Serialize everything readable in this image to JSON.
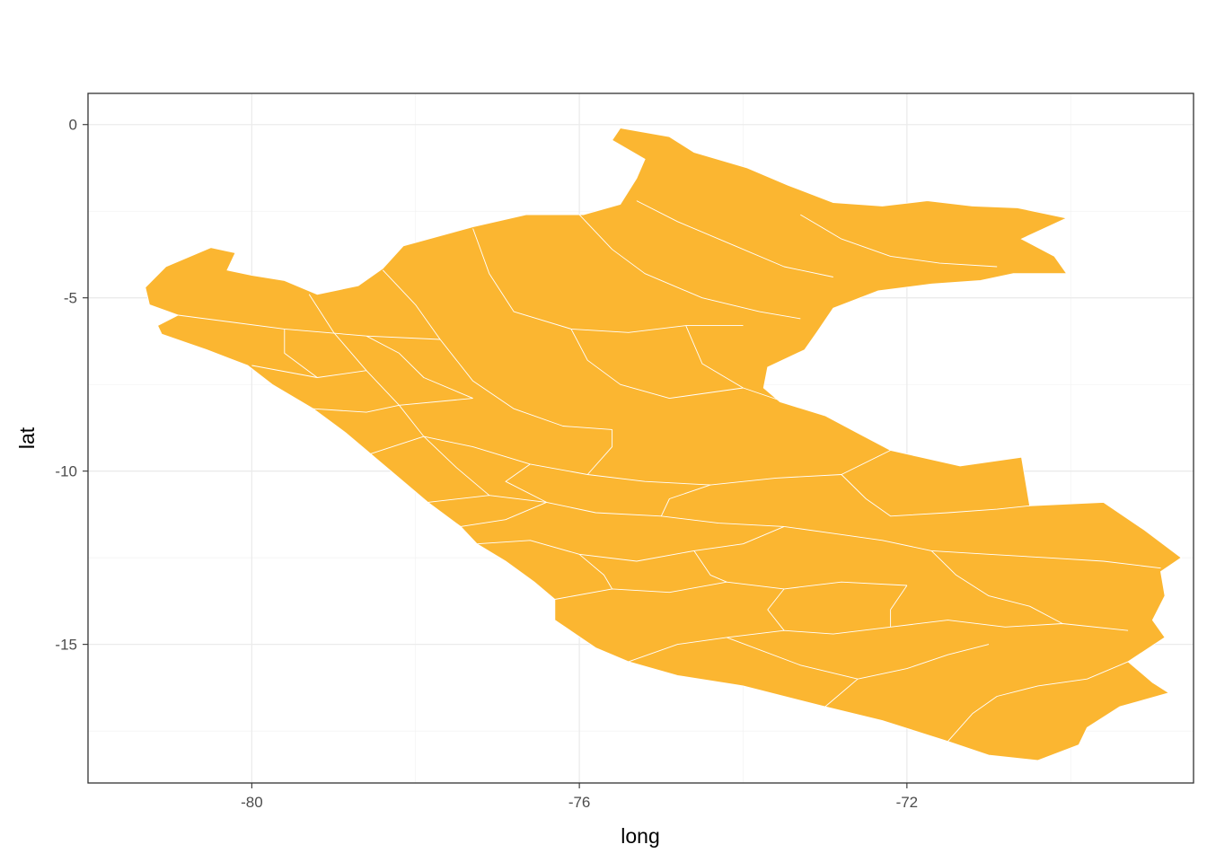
{
  "chart_data": {
    "type": "map",
    "xlabel": "long",
    "ylabel": "lat",
    "xlim": [
      -82.0,
      -68.5
    ],
    "ylim": [
      -19.0,
      0.9
    ],
    "x_ticks": [
      {
        "value": -80,
        "label": "-80"
      },
      {
        "value": -76,
        "label": "-76"
      },
      {
        "value": -72,
        "label": "-72"
      }
    ],
    "x_minor_ticks": [
      -78,
      -74,
      -70
    ],
    "y_ticks": [
      {
        "value": 0,
        "label": "0"
      },
      {
        "value": -5,
        "label": "-5"
      },
      {
        "value": -10,
        "label": "-10"
      },
      {
        "value": -15,
        "label": "-15"
      }
    ],
    "y_minor_ticks": [
      -2.5,
      -7.5,
      -12.5,
      -17.5
    ],
    "grid": true,
    "fill_color": "#fbb631",
    "border_color": "#ffffff",
    "panel_border_color": "#333333",
    "outline": [
      [
        -75.5,
        -0.1
      ],
      [
        -74.9,
        -0.35
      ],
      [
        -74.6,
        -0.8
      ],
      [
        -73.95,
        -1.25
      ],
      [
        -73.45,
        -1.75
      ],
      [
        -72.9,
        -2.25
      ],
      [
        -72.3,
        -2.35
      ],
      [
        -71.75,
        -2.2
      ],
      [
        -71.2,
        -2.35
      ],
      [
        -70.65,
        -2.4
      ],
      [
        -70.05,
        -2.7
      ],
      [
        -70.6,
        -3.3
      ],
      [
        -70.2,
        -3.8
      ],
      [
        -70.05,
        -4.3
      ],
      [
        -70.7,
        -4.3
      ],
      [
        -71.1,
        -4.5
      ],
      [
        -71.7,
        -4.6
      ],
      [
        -72.35,
        -4.8
      ],
      [
        -72.9,
        -5.3
      ],
      [
        -73.1,
        -6.0
      ],
      [
        -73.25,
        -6.5
      ],
      [
        -73.7,
        -7.0
      ],
      [
        -73.75,
        -7.6
      ],
      [
        -73.55,
        -8.0
      ],
      [
        -73.0,
        -8.4
      ],
      [
        -72.6,
        -8.9
      ],
      [
        -72.2,
        -9.4
      ],
      [
        -71.35,
        -9.85
      ],
      [
        -70.6,
        -9.6
      ],
      [
        -70.5,
        -11.0
      ],
      [
        -69.6,
        -10.9
      ],
      [
        -69.1,
        -11.7
      ],
      [
        -68.65,
        -12.5
      ],
      [
        -68.9,
        -12.9
      ],
      [
        -68.85,
        -13.6
      ],
      [
        -69.0,
        -14.3
      ],
      [
        -68.85,
        -14.8
      ],
      [
        -69.3,
        -15.5
      ],
      [
        -69.0,
        -16.1
      ],
      [
        -68.8,
        -16.4
      ],
      [
        -69.4,
        -16.8
      ],
      [
        -69.8,
        -17.4
      ],
      [
        -69.9,
        -17.9
      ],
      [
        -70.4,
        -18.35
      ],
      [
        -71.0,
        -18.2
      ],
      [
        -71.5,
        -17.8
      ],
      [
        -72.3,
        -17.2
      ],
      [
        -73.0,
        -16.8
      ],
      [
        -74.0,
        -16.2
      ],
      [
        -74.8,
        -15.9
      ],
      [
        -75.4,
        -15.5
      ],
      [
        -75.8,
        -15.1
      ],
      [
        -76.3,
        -14.3
      ],
      [
        -76.3,
        -13.7
      ],
      [
        -76.55,
        -13.2
      ],
      [
        -76.9,
        -12.6
      ],
      [
        -77.25,
        -12.1
      ],
      [
        -77.45,
        -11.6
      ],
      [
        -77.85,
        -10.9
      ],
      [
        -78.2,
        -10.2
      ],
      [
        -78.55,
        -9.5
      ],
      [
        -78.85,
        -8.9
      ],
      [
        -79.25,
        -8.2
      ],
      [
        -79.75,
        -7.5
      ],
      [
        -80.05,
        -6.95
      ],
      [
        -80.55,
        -6.5
      ],
      [
        -81.1,
        -6.05
      ],
      [
        -81.15,
        -5.8
      ],
      [
        -80.9,
        -5.5
      ],
      [
        -81.25,
        -5.2
      ],
      [
        -81.3,
        -4.7
      ],
      [
        -81.05,
        -4.1
      ],
      [
        -80.5,
        -3.55
      ],
      [
        -80.2,
        -3.7
      ],
      [
        -80.3,
        -4.2
      ],
      [
        -80.0,
        -4.35
      ],
      [
        -79.6,
        -4.5
      ],
      [
        -79.2,
        -4.9
      ],
      [
        -78.7,
        -4.65
      ],
      [
        -78.4,
        -4.15
      ],
      [
        -78.15,
        -3.5
      ],
      [
        -77.3,
        -2.95
      ],
      [
        -76.65,
        -2.6
      ],
      [
        -75.95,
        -2.6
      ],
      [
        -75.5,
        -2.3
      ],
      [
        -75.3,
        -1.55
      ],
      [
        -75.2,
        -1.0
      ],
      [
        -75.6,
        -0.45
      ]
    ],
    "internal_boundaries": [
      [
        [
          -76.0,
          -2.6
        ],
        [
          -75.6,
          -3.6
        ],
        [
          -75.2,
          -4.3
        ],
        [
          -74.5,
          -5.0
        ],
        [
          -73.8,
          -5.4
        ],
        [
          -73.3,
          -5.6
        ]
      ],
      [
        [
          -75.3,
          -2.2
        ],
        [
          -74.8,
          -2.8
        ],
        [
          -74.1,
          -3.5
        ],
        [
          -73.5,
          -4.1
        ],
        [
          -72.9,
          -4.4
        ]
      ],
      [
        [
          -73.3,
          -2.6
        ],
        [
          -72.8,
          -3.3
        ],
        [
          -72.2,
          -3.8
        ],
        [
          -71.6,
          -4.0
        ],
        [
          -70.9,
          -4.1
        ]
      ],
      [
        [
          -77.3,
          -3.0
        ],
        [
          -77.1,
          -4.3
        ],
        [
          -76.8,
          -5.4
        ],
        [
          -76.1,
          -5.9
        ],
        [
          -75.4,
          -6.0
        ],
        [
          -74.7,
          -5.8
        ],
        [
          -74.0,
          -5.8
        ]
      ],
      [
        [
          -78.4,
          -4.2
        ],
        [
          -78.0,
          -5.2
        ],
        [
          -77.7,
          -6.2
        ],
        [
          -77.3,
          -7.4
        ],
        [
          -76.8,
          -8.2
        ],
        [
          -76.2,
          -8.7
        ],
        [
          -75.6,
          -8.8
        ]
      ],
      [
        [
          -74.7,
          -5.8
        ],
        [
          -74.5,
          -6.9
        ],
        [
          -74.0,
          -7.6
        ],
        [
          -73.5,
          -8.0
        ]
      ],
      [
        [
          -79.3,
          -4.9
        ],
        [
          -79.0,
          -6.0
        ],
        [
          -78.6,
          -7.1
        ],
        [
          -78.2,
          -8.1
        ],
        [
          -77.9,
          -9.0
        ],
        [
          -77.5,
          -9.9
        ],
        [
          -77.1,
          -10.7
        ]
      ],
      [
        [
          -80.9,
          -5.5
        ],
        [
          -79.6,
          -5.9
        ],
        [
          -78.6,
          -6.1
        ],
        [
          -77.7,
          -6.2
        ]
      ],
      [
        [
          -80.0,
          -6.95
        ],
        [
          -79.2,
          -7.3
        ],
        [
          -78.6,
          -7.1
        ]
      ],
      [
        [
          -79.25,
          -8.2
        ],
        [
          -78.6,
          -8.3
        ],
        [
          -78.2,
          -8.1
        ],
        [
          -77.3,
          -7.9
        ]
      ],
      [
        [
          -78.55,
          -9.5
        ],
        [
          -77.9,
          -9.0
        ],
        [
          -77.3,
          -9.3
        ],
        [
          -76.6,
          -9.8
        ],
        [
          -75.9,
          -10.1
        ],
        [
          -75.2,
          -10.3
        ],
        [
          -74.4,
          -10.4
        ],
        [
          -73.6,
          -10.2
        ],
        [
          -72.8,
          -10.1
        ],
        [
          -72.2,
          -9.4
        ]
      ],
      [
        [
          -77.85,
          -10.9
        ],
        [
          -77.1,
          -10.7
        ],
        [
          -76.4,
          -10.9
        ],
        [
          -75.8,
          -11.2
        ],
        [
          -75.0,
          -11.3
        ],
        [
          -74.3,
          -11.5
        ],
        [
          -73.5,
          -11.6
        ]
      ],
      [
        [
          -77.25,
          -12.1
        ],
        [
          -76.6,
          -12.0
        ],
        [
          -76.0,
          -12.4
        ],
        [
          -75.3,
          -12.6
        ],
        [
          -74.6,
          -12.3
        ],
        [
          -74.0,
          -12.1
        ],
        [
          -73.5,
          -11.6
        ]
      ],
      [
        [
          -76.3,
          -13.7
        ],
        [
          -75.6,
          -13.4
        ],
        [
          -74.9,
          -13.5
        ],
        [
          -74.2,
          -13.2
        ],
        [
          -73.5,
          -13.4
        ],
        [
          -72.8,
          -13.2
        ],
        [
          -72.0,
          -13.3
        ]
      ],
      [
        [
          -75.4,
          -15.5
        ],
        [
          -74.8,
          -15.0
        ],
        [
          -74.2,
          -14.8
        ],
        [
          -73.5,
          -14.6
        ],
        [
          -72.9,
          -14.7
        ],
        [
          -72.2,
          -14.5
        ],
        [
          -71.5,
          -14.3
        ],
        [
          -70.8,
          -14.5
        ],
        [
          -70.1,
          -14.4
        ],
        [
          -69.3,
          -14.6
        ]
      ],
      [
        [
          -73.0,
          -16.8
        ],
        [
          -72.6,
          -16.0
        ],
        [
          -72.0,
          -15.7
        ],
        [
          -71.5,
          -15.3
        ],
        [
          -71.0,
          -15.0
        ]
      ],
      [
        [
          -71.5,
          -17.8
        ],
        [
          -71.2,
          -17.0
        ],
        [
          -70.9,
          -16.5
        ],
        [
          -70.4,
          -16.2
        ],
        [
          -69.8,
          -16.0
        ],
        [
          -69.3,
          -15.5
        ]
      ],
      [
        [
          -73.5,
          -11.6
        ],
        [
          -72.9,
          -11.8
        ],
        [
          -72.3,
          -12.0
        ],
        [
          -71.7,
          -12.3
        ],
        [
          -71.0,
          -12.4
        ],
        [
          -70.3,
          -12.5
        ],
        [
          -69.6,
          -12.6
        ],
        [
          -68.9,
          -12.8
        ]
      ],
      [
        [
          -72.8,
          -10.1
        ],
        [
          -72.5,
          -10.8
        ],
        [
          -72.2,
          -11.3
        ],
        [
          -71.5,
          -11.2
        ],
        [
          -70.9,
          -11.1
        ],
        [
          -70.5,
          -11.0
        ]
      ],
      [
        [
          -71.7,
          -12.3
        ],
        [
          -71.4,
          -13.0
        ],
        [
          -71.0,
          -13.6
        ],
        [
          -70.5,
          -13.9
        ],
        [
          -70.1,
          -14.4
        ]
      ],
      [
        [
          -74.6,
          -12.3
        ],
        [
          -74.4,
          -13.0
        ],
        [
          -74.2,
          -13.2
        ]
      ],
      [
        [
          -75.9,
          -10.1
        ],
        [
          -75.6,
          -9.3
        ],
        [
          -75.6,
          -8.8
        ]
      ],
      [
        [
          -76.6,
          -9.8
        ],
        [
          -76.9,
          -10.3
        ],
        [
          -76.4,
          -10.9
        ]
      ],
      [
        [
          -79.6,
          -5.9
        ],
        [
          -79.6,
          -6.6
        ],
        [
          -79.2,
          -7.3
        ]
      ],
      [
        [
          -78.6,
          -6.1
        ],
        [
          -78.2,
          -6.6
        ],
        [
          -77.9,
          -7.3
        ],
        [
          -77.3,
          -7.9
        ]
      ],
      [
        [
          -76.1,
          -5.9
        ],
        [
          -75.9,
          -6.8
        ],
        [
          -75.5,
          -7.5
        ],
        [
          -74.9,
          -7.9
        ],
        [
          -74.0,
          -7.6
        ]
      ],
      [
        [
          -76.0,
          -12.4
        ],
        [
          -75.7,
          -13.0
        ],
        [
          -75.6,
          -13.4
        ]
      ],
      [
        [
          -75.0,
          -11.3
        ],
        [
          -74.9,
          -10.8
        ],
        [
          -74.4,
          -10.4
        ]
      ],
      [
        [
          -73.5,
          -13.4
        ],
        [
          -73.7,
          -14.0
        ],
        [
          -73.5,
          -14.6
        ]
      ],
      [
        [
          -72.0,
          -13.3
        ],
        [
          -72.2,
          -14.0
        ],
        [
          -72.2,
          -14.5
        ]
      ],
      [
        [
          -72.6,
          -16.0
        ],
        [
          -73.3,
          -15.6
        ],
        [
          -74.2,
          -14.8
        ]
      ],
      [
        [
          -77.45,
          -11.6
        ],
        [
          -76.9,
          -11.4
        ],
        [
          -76.4,
          -10.9
        ]
      ]
    ]
  }
}
